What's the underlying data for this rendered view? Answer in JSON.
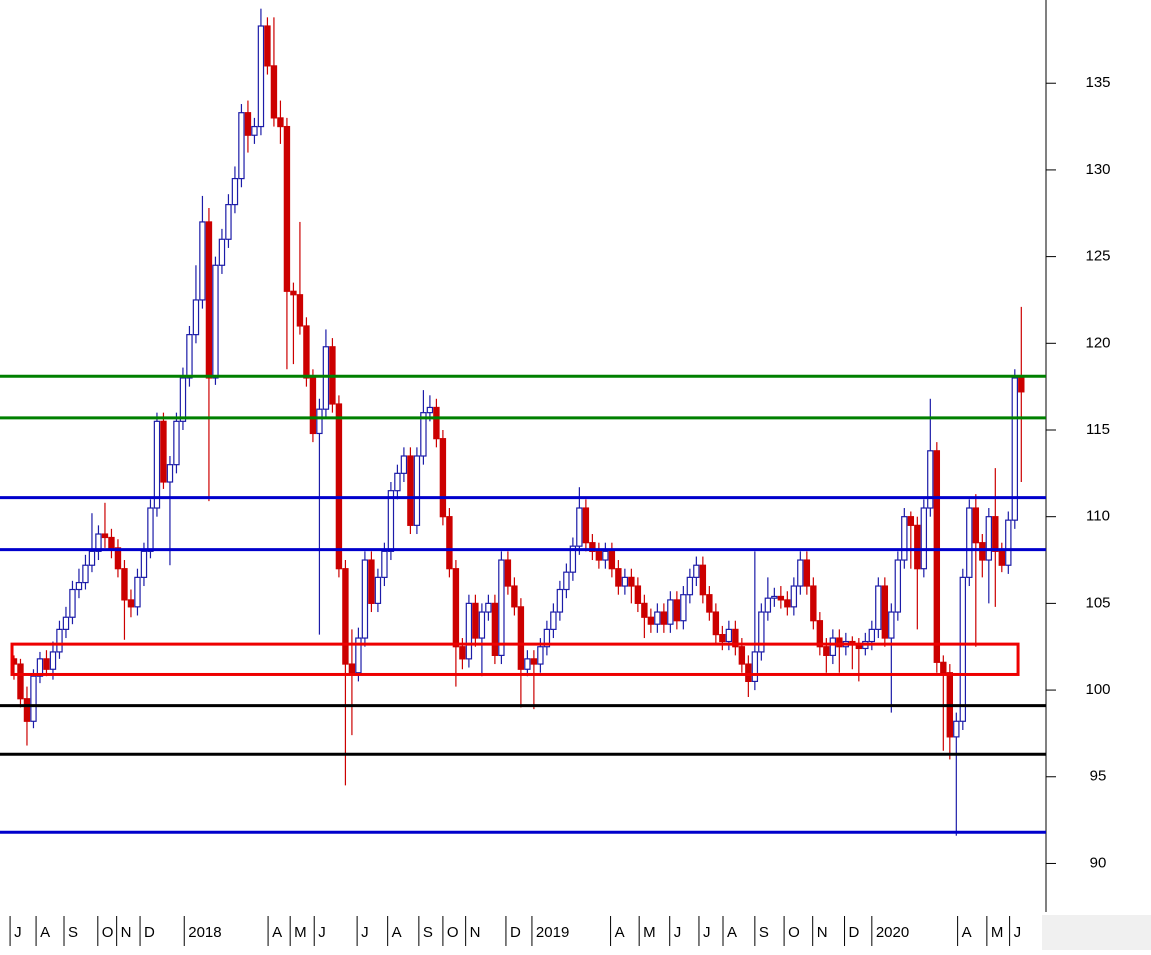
{
  "chart_data": {
    "type": "candlestick",
    "up_color": "#1c1ca8",
    "down_color": "#cc0000",
    "xlim": [
      -2.15,
      158.8
    ],
    "ylim": [
      87.2,
      139.8
    ],
    "yticks": [
      90,
      95,
      100,
      105,
      110,
      115,
      120,
      125,
      130,
      135
    ],
    "xticks": [
      {
        "value": -0.6,
        "label": "J"
      },
      {
        "value": 3.4,
        "label": "A"
      },
      {
        "value": 7.7,
        "label": "S"
      },
      {
        "value": 12.9,
        "label": "O"
      },
      {
        "value": 15.8,
        "label": "N"
      },
      {
        "value": 19.4,
        "label": "D"
      },
      {
        "value": 26.2,
        "label": "2018"
      },
      {
        "value": 39.1,
        "label": "A"
      },
      {
        "value": 42.5,
        "label": "M"
      },
      {
        "value": 46.2,
        "label": "J"
      },
      {
        "value": 52.8,
        "label": "J"
      },
      {
        "value": 57.5,
        "label": "A"
      },
      {
        "value": 62.3,
        "label": "S"
      },
      {
        "value": 66,
        "label": "O"
      },
      {
        "value": 69.5,
        "label": "N"
      },
      {
        "value": 75.7,
        "label": "D"
      },
      {
        "value": 79.7,
        "label": "2019"
      },
      {
        "value": 91.8,
        "label": "A"
      },
      {
        "value": 96.2,
        "label": "M"
      },
      {
        "value": 100.9,
        "label": "J"
      },
      {
        "value": 105.4,
        "label": "J"
      },
      {
        "value": 109.1,
        "label": "A"
      },
      {
        "value": 114,
        "label": "S"
      },
      {
        "value": 118.5,
        "label": "O"
      },
      {
        "value": 122.9,
        "label": "N"
      },
      {
        "value": 127.8,
        "label": "D"
      },
      {
        "value": 132,
        "label": "2020"
      },
      {
        "value": 145.2,
        "label": "A"
      },
      {
        "value": 149.7,
        "label": "M"
      },
      {
        "value": 153.2,
        "label": "J"
      }
    ],
    "hlines": [
      {
        "value": 118.1,
        "color": "#008000"
      },
      {
        "value": 115.7,
        "color": "#008000"
      },
      {
        "value": 111.1,
        "color": "#0000cc"
      },
      {
        "value": 108.1,
        "color": "#0000cc"
      },
      {
        "value": 99.1,
        "color": "#000000"
      },
      {
        "value": 96.3,
        "color": "#000000"
      },
      {
        "value": 91.8,
        "color": "#0000cc"
      }
    ],
    "zones": [
      {
        "low": 100.9,
        "high": 102.65,
        "x": [
          -0.3,
          154.5
        ],
        "color": "#ee0000"
      }
    ],
    "candles": [
      [
        101.8,
        102.0,
        100.6,
        101.5
      ],
      [
        101.5,
        101.8,
        99.0,
        99.5
      ],
      [
        99.5,
        100.2,
        96.8,
        98.2
      ],
      [
        98.2,
        101.2,
        97.8,
        100.8
      ],
      [
        100.8,
        102.2,
        100.4,
        101.8
      ],
      [
        101.8,
        102.3,
        100.8,
        101.2
      ],
      [
        101.2,
        102.8,
        100.6,
        102.2
      ],
      [
        102.2,
        104.0,
        101.8,
        103.5
      ],
      [
        103.5,
        104.8,
        103.0,
        104.2
      ],
      [
        104.2,
        106.3,
        103.8,
        105.8
      ],
      [
        105.8,
        107.0,
        105.3,
        106.2
      ],
      [
        106.2,
        107.8,
        105.8,
        107.2
      ],
      [
        107.2,
        110.2,
        106.8,
        108.0
      ],
      [
        108.0,
        109.5,
        107.5,
        109.0
      ],
      [
        109.0,
        110.8,
        108.2,
        108.8
      ],
      [
        108.8,
        109.3,
        107.6,
        108.2
      ],
      [
        108.2,
        108.7,
        106.5,
        107.0
      ],
      [
        107.0,
        107.5,
        102.9,
        105.2
      ],
      [
        105.2,
        105.8,
        104.2,
        104.8
      ],
      [
        104.8,
        107.0,
        104.3,
        106.5
      ],
      [
        106.5,
        108.5,
        106.0,
        108.0
      ],
      [
        108.0,
        111.0,
        107.6,
        110.5
      ],
      [
        110.5,
        116.0,
        110.0,
        115.5
      ],
      [
        115.5,
        116.0,
        111.6,
        112.0
      ],
      [
        112.0,
        113.5,
        107.2,
        113.0
      ],
      [
        113.0,
        116.0,
        112.5,
        115.5
      ],
      [
        115.5,
        118.6,
        115.0,
        118.0
      ],
      [
        118.0,
        121.0,
        117.5,
        120.5
      ],
      [
        120.5,
        124.5,
        120.0,
        122.5
      ],
      [
        122.5,
        128.5,
        122.0,
        127.0
      ],
      [
        127.0,
        127.8,
        110.9,
        118.0
      ],
      [
        118.0,
        125.0,
        117.6,
        124.5
      ],
      [
        124.5,
        126.6,
        124.0,
        126.0
      ],
      [
        126.0,
        128.6,
        125.5,
        128.0
      ],
      [
        128.0,
        130.2,
        127.5,
        129.5
      ],
      [
        129.5,
        133.8,
        129.0,
        133.3
      ],
      [
        133.3,
        134.0,
        131.0,
        132.0
      ],
      [
        132.0,
        133.0,
        131.5,
        132.5
      ],
      [
        132.5,
        139.3,
        132.0,
        138.3
      ],
      [
        138.3,
        138.8,
        135.5,
        136.0
      ],
      [
        136.0,
        138.8,
        132.5,
        133.0
      ],
      [
        133.0,
        134.0,
        131.5,
        132.5
      ],
      [
        132.5,
        133.0,
        118.5,
        123.0
      ],
      [
        123.0,
        123.5,
        118.8,
        122.8
      ],
      [
        122.8,
        127.0,
        120.5,
        121.0
      ],
      [
        121.0,
        121.5,
        117.5,
        118.0
      ],
      [
        118.0,
        118.5,
        114.3,
        114.8
      ],
      [
        114.8,
        116.8,
        103.2,
        116.2
      ],
      [
        116.2,
        120.8,
        115.7,
        119.8
      ],
      [
        119.8,
        120.3,
        116.0,
        116.5
      ],
      [
        116.5,
        117.0,
        106.5,
        107.0
      ],
      [
        107.0,
        107.5,
        94.5,
        101.5
      ],
      [
        101.5,
        103.5,
        97.4,
        101.0
      ],
      [
        101.0,
        103.6,
        100.5,
        103.0
      ],
      [
        103.0,
        108.0,
        102.5,
        107.5
      ],
      [
        107.5,
        108.0,
        104.5,
        105.0
      ],
      [
        105.0,
        107.0,
        104.5,
        106.5
      ],
      [
        106.5,
        108.5,
        106.0,
        108.0
      ],
      [
        108.0,
        112.0,
        107.5,
        111.5
      ],
      [
        111.5,
        113.0,
        111.0,
        112.5
      ],
      [
        112.5,
        114.0,
        112.0,
        113.5
      ],
      [
        113.5,
        114.0,
        109.0,
        109.5
      ],
      [
        109.5,
        114.0,
        109.0,
        113.5
      ],
      [
        113.5,
        117.3,
        113.0,
        116.0
      ],
      [
        116.0,
        117.0,
        115.5,
        116.3
      ],
      [
        116.3,
        116.8,
        114.0,
        114.5
      ],
      [
        114.5,
        115.0,
        109.5,
        110.0
      ],
      [
        110.0,
        110.5,
        106.5,
        107.0
      ],
      [
        107.0,
        107.5,
        100.2,
        102.5
      ],
      [
        102.5,
        103.0,
        101.2,
        101.8
      ],
      [
        101.8,
        105.5,
        101.3,
        105.0
      ],
      [
        105.0,
        105.5,
        102.5,
        103.0
      ],
      [
        103.0,
        105.0,
        100.8,
        104.5
      ],
      [
        104.5,
        105.5,
        104.0,
        105.0
      ],
      [
        105.0,
        105.5,
        101.5,
        102.0
      ],
      [
        102.0,
        108.0,
        101.5,
        107.5
      ],
      [
        107.5,
        108.0,
        105.5,
        106.0
      ],
      [
        106.0,
        106.5,
        104.3,
        104.8
      ],
      [
        104.8,
        105.3,
        99.0,
        101.2
      ],
      [
        101.2,
        102.3,
        100.8,
        101.8
      ],
      [
        101.8,
        102.3,
        98.9,
        101.5
      ],
      [
        101.5,
        103.0,
        101.0,
        102.5
      ],
      [
        102.5,
        104.0,
        102.0,
        103.5
      ],
      [
        103.5,
        105.0,
        103.0,
        104.5
      ],
      [
        104.5,
        106.3,
        104.0,
        105.8
      ],
      [
        105.8,
        107.3,
        105.3,
        106.8
      ],
      [
        106.8,
        108.8,
        106.3,
        108.3
      ],
      [
        108.3,
        111.7,
        107.8,
        110.5
      ],
      [
        110.5,
        111.0,
        108.0,
        108.5
      ],
      [
        108.5,
        109.0,
        107.5,
        108.0
      ],
      [
        108.0,
        108.5,
        107.0,
        107.5
      ],
      [
        107.5,
        108.5,
        107.0,
        108.0
      ],
      [
        108.0,
        108.5,
        106.5,
        107.0
      ],
      [
        107.0,
        107.5,
        105.5,
        106.0
      ],
      [
        106.0,
        107.0,
        105.5,
        106.5
      ],
      [
        106.5,
        107.0,
        105.0,
        106.0
      ],
      [
        106.0,
        106.5,
        104.5,
        105.0
      ],
      [
        105.0,
        105.5,
        103.0,
        104.2
      ],
      [
        104.2,
        104.7,
        103.3,
        103.8
      ],
      [
        103.8,
        105.0,
        103.3,
        104.5
      ],
      [
        104.5,
        105.0,
        103.3,
        103.8
      ],
      [
        103.8,
        105.7,
        103.3,
        105.2
      ],
      [
        105.2,
        105.7,
        103.5,
        104.0
      ],
      [
        104.0,
        106.0,
        103.5,
        105.5
      ],
      [
        105.5,
        107.0,
        105.0,
        106.5
      ],
      [
        106.5,
        107.7,
        106.0,
        107.2
      ],
      [
        107.2,
        107.7,
        105.0,
        105.5
      ],
      [
        105.5,
        106.0,
        104.0,
        104.5
      ],
      [
        104.5,
        105.0,
        102.7,
        103.2
      ],
      [
        103.2,
        103.7,
        102.3,
        102.8
      ],
      [
        102.8,
        104.0,
        102.3,
        103.5
      ],
      [
        103.5,
        104.0,
        102.0,
        102.5
      ],
      [
        102.5,
        103.0,
        101.0,
        101.5
      ],
      [
        101.5,
        102.0,
        99.6,
        100.5
      ],
      [
        100.5,
        108.0,
        100.0,
        102.2
      ],
      [
        102.2,
        105.0,
        101.7,
        104.5
      ],
      [
        104.5,
        106.5,
        104.0,
        105.3
      ],
      [
        105.3,
        105.9,
        104.8,
        105.4
      ],
      [
        105.4,
        106.0,
        104.7,
        105.2
      ],
      [
        105.2,
        105.7,
        104.3,
        104.8
      ],
      [
        104.8,
        106.5,
        104.3,
        106.0
      ],
      [
        106.0,
        108.0,
        105.5,
        107.5
      ],
      [
        107.5,
        108.0,
        105.5,
        106.0
      ],
      [
        106.0,
        106.5,
        103.5,
        104.0
      ],
      [
        104.0,
        104.5,
        102.0,
        102.5
      ],
      [
        102.5,
        103.0,
        101.0,
        102.0
      ],
      [
        102.0,
        103.5,
        101.5,
        103.0
      ],
      [
        103.0,
        103.5,
        101.0,
        102.5
      ],
      [
        102.5,
        103.3,
        102.0,
        102.8
      ],
      [
        102.8,
        103.1,
        101.2,
        102.6
      ],
      [
        102.6,
        103.0,
        100.5,
        102.4
      ],
      [
        102.4,
        103.3,
        102.0,
        102.8
      ],
      [
        102.8,
        104.0,
        102.3,
        103.5
      ],
      [
        103.5,
        106.5,
        103.0,
        106.0
      ],
      [
        106.0,
        106.5,
        102.5,
        103.0
      ],
      [
        103.0,
        105.0,
        98.7,
        104.5
      ],
      [
        104.5,
        108.0,
        104.0,
        107.5
      ],
      [
        107.5,
        110.5,
        107.0,
        110.0
      ],
      [
        110.0,
        110.3,
        107.0,
        109.5
      ],
      [
        109.5,
        110.0,
        103.5,
        107.0
      ],
      [
        107.0,
        111.0,
        106.5,
        110.5
      ],
      [
        110.5,
        116.8,
        110.0,
        113.8
      ],
      [
        113.8,
        114.3,
        101.0,
        101.6
      ],
      [
        101.6,
        102.0,
        96.5,
        101.0
      ],
      [
        101.0,
        101.5,
        96.0,
        97.3
      ],
      [
        97.3,
        98.7,
        91.6,
        98.2
      ],
      [
        98.2,
        107.0,
        97.7,
        106.5
      ],
      [
        106.5,
        111.0,
        106.0,
        110.5
      ],
      [
        110.5,
        111.3,
        102.5,
        108.5
      ],
      [
        108.5,
        109.0,
        106.5,
        107.5
      ],
      [
        107.5,
        110.5,
        105.0,
        110.0
      ],
      [
        110.0,
        112.8,
        104.8,
        108.0
      ],
      [
        108.0,
        108.5,
        106.8,
        107.2
      ],
      [
        107.2,
        110.3,
        106.7,
        109.8
      ],
      [
        109.8,
        118.5,
        109.3,
        118.0
      ],
      [
        118.0,
        122.1,
        112.0,
        117.2
      ]
    ]
  }
}
